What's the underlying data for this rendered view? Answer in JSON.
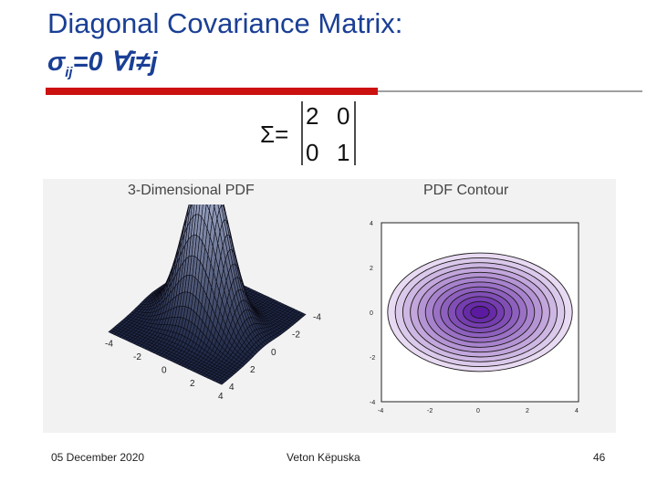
{
  "slide": {
    "title_line1": "Diagonal Covariance Matrix:",
    "title_line2": {
      "sigma": "σ",
      "subscript": "ij",
      "rest": "=0  ∀i≠j"
    },
    "matrix": {
      "symbol": "Σ=",
      "rows": [
        [
          "2",
          "0"
        ],
        [
          "0",
          "1"
        ]
      ]
    },
    "left_plot": {
      "title": "3-Dimensional PDF",
      "x_ticks": [
        "-4",
        "-2",
        "0",
        "2",
        "4"
      ],
      "y_ticks": [
        "-4",
        "-2",
        "0",
        "2",
        "4"
      ]
    },
    "right_plot": {
      "title": "PDF Contour",
      "x_ticks": [
        "-4",
        "-2",
        "0",
        "2",
        "4"
      ],
      "y_ticks": [
        "-4",
        "-2",
        "0",
        "2",
        "4"
      ]
    },
    "footer": {
      "date": "05 December 2020",
      "author": "Veton Këpuska",
      "page": "46"
    },
    "colors": {
      "title": "#1a3f95",
      "accent_rule": "#cc1111",
      "contour_fill": "#5b1aa0"
    }
  }
}
